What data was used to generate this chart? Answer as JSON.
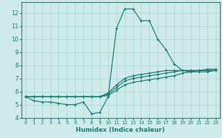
{
  "xlabel": "Humidex (Indice chaleur)",
  "bg_color": "#ceeaea",
  "line_color": "#1a7a6e",
  "grid_color": "#a8d4d4",
  "xlim": [
    -0.5,
    23.5
  ],
  "ylim": [
    4,
    12.8
  ],
  "xticks": [
    0,
    1,
    2,
    3,
    4,
    5,
    6,
    7,
    8,
    9,
    10,
    11,
    12,
    13,
    14,
    15,
    16,
    17,
    18,
    19,
    20,
    21,
    22,
    23
  ],
  "yticks": [
    4,
    5,
    6,
    7,
    8,
    9,
    10,
    11,
    12
  ],
  "lines": [
    {
      "x": [
        0,
        1,
        2,
        3,
        4,
        5,
        6,
        7,
        8,
        9,
        10,
        11,
        12,
        13,
        14,
        15,
        16,
        17,
        18,
        19,
        20,
        21,
        22,
        23
      ],
      "y": [
        5.6,
        5.3,
        5.2,
        5.2,
        5.1,
        5.0,
        5.0,
        5.2,
        4.3,
        4.4,
        5.6,
        10.8,
        12.3,
        12.3,
        11.4,
        11.4,
        10.0,
        9.2,
        8.1,
        7.6,
        7.5,
        7.5,
        7.5,
        7.6
      ]
    },
    {
      "x": [
        0,
        1,
        2,
        3,
        4,
        5,
        6,
        7,
        8,
        9,
        10,
        11,
        12,
        13,
        14,
        15,
        16,
        17,
        18,
        19,
        20,
        21,
        22,
        23
      ],
      "y": [
        5.6,
        5.6,
        5.6,
        5.6,
        5.6,
        5.6,
        5.6,
        5.6,
        5.6,
        5.6,
        5.7,
        6.1,
        6.5,
        6.7,
        6.8,
        6.9,
        7.0,
        7.1,
        7.2,
        7.4,
        7.5,
        7.6,
        7.7,
        7.7
      ]
    },
    {
      "x": [
        0,
        1,
        2,
        3,
        4,
        5,
        6,
        7,
        8,
        9,
        10,
        11,
        12,
        13,
        14,
        15,
        16,
        17,
        18,
        19,
        20,
        21,
        22,
        23
      ],
      "y": [
        5.6,
        5.6,
        5.6,
        5.6,
        5.6,
        5.6,
        5.6,
        5.6,
        5.6,
        5.6,
        5.8,
        6.3,
        6.8,
        7.0,
        7.1,
        7.2,
        7.3,
        7.4,
        7.5,
        7.6,
        7.6,
        7.6,
        7.6,
        7.6
      ]
    },
    {
      "x": [
        0,
        1,
        2,
        3,
        4,
        5,
        6,
        7,
        8,
        9,
        10,
        11,
        12,
        13,
        14,
        15,
        16,
        17,
        18,
        19,
        20,
        21,
        22,
        23
      ],
      "y": [
        5.6,
        5.6,
        5.6,
        5.6,
        5.6,
        5.6,
        5.6,
        5.6,
        5.6,
        5.6,
        5.9,
        6.5,
        7.0,
        7.2,
        7.3,
        7.4,
        7.5,
        7.6,
        7.6,
        7.6,
        7.6,
        7.6,
        7.6,
        7.6
      ]
    }
  ],
  "marker": "+",
  "markersize": 3.5,
  "markeredgewidth": 0.8,
  "linewidth": 0.9,
  "xlabel_fontsize": 6.5,
  "tick_fontsize_x": 5.0,
  "tick_fontsize_y": 6.0
}
